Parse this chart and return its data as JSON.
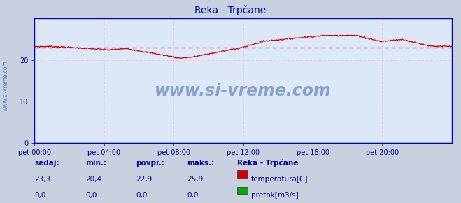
{
  "title": "Reka - Trpčane",
  "bg_color": "#d0d8e8",
  "plot_bg_color": "#dce8f8",
  "grid_color_v": "#ffaaaa",
  "grid_color_h": "#ffaaaa",
  "spine_color": "#0000cc",
  "x_ticks": [
    "pet 00:00",
    "pet 04:00",
    "pet 08:00",
    "pet 12:00",
    "pet 16:00",
    "pet 20:00"
  ],
  "x_tick_positions": [
    0,
    96,
    192,
    288,
    384,
    480
  ],
  "x_max": 576,
  "y_ticks": [
    0,
    10,
    20
  ],
  "ylim": [
    0,
    30
  ],
  "temp_color": "#cc0000",
  "pretok_color": "#00aa00",
  "avg_line_color": "#cc0000",
  "avg_value": 22.9,
  "min_value": 20.4,
  "max_value": 25.9,
  "current_value": 23.3,
  "watermark": "www.si-vreme.com",
  "watermark_color": "#4466aa",
  "sidebar_text": "www.si-vreme.com",
  "sidebar_color": "#4466aa",
  "legend_title": "Reka - Trpčane",
  "legend_temp_label": "temperatura[C]",
  "legend_pretok_label": "pretok[m3/s]",
  "stats_labels": [
    "sedaj:",
    "min.:",
    "povpr.:",
    "maks.:"
  ],
  "stats_temp": [
    "23,3",
    "20,4",
    "22,9",
    "25,9"
  ],
  "stats_pretok": [
    "0,0",
    "0,0",
    "0,0",
    "0,0"
  ],
  "stats_color": "#000088",
  "title_color": "#0000aa",
  "tick_label_color": "#000088",
  "arrow_color": "#cc0000",
  "fig_bg_color": "#c8d0e0"
}
